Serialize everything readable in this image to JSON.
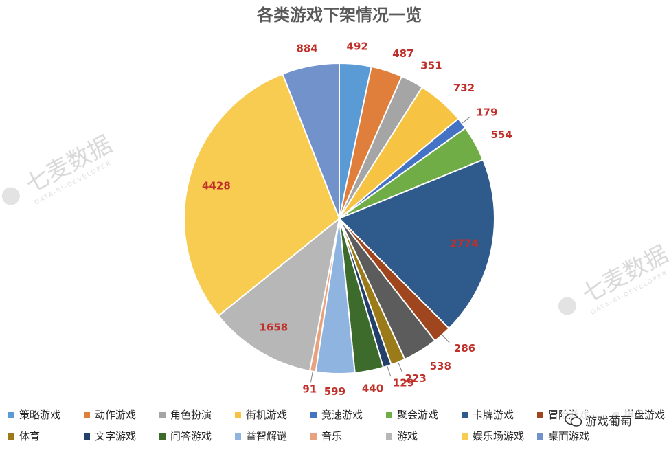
{
  "chart_data": {
    "type": "pie",
    "title": "各类游戏下架情况一览",
    "legend_position": "bottom",
    "categories": [
      "策略游戏",
      "动作游戏",
      "角色扮演",
      "街机游戏",
      "竞速游戏",
      "聚会游戏",
      "卡牌游戏",
      "冒险游戏",
      "棋盘游戏",
      "体育",
      "文字游戏",
      "问答游戏",
      "益智解谜",
      "音乐",
      "游戏",
      "娱乐场游戏",
      "桌面游戏"
    ],
    "values": [
      492,
      487,
      351,
      732,
      179,
      554,
      2774,
      286,
      538,
      223,
      129,
      440,
      599,
      91,
      1658,
      4428,
      884
    ],
    "colors": [
      "#5b9bd5",
      "#e07f3c",
      "#a5a5a5",
      "#f7c342",
      "#4472c4",
      "#70ad47",
      "#2f5a8c",
      "#a0461f",
      "#5c5c5c",
      "#9b7a1a",
      "#23406b",
      "#3d6b2c",
      "#8fb4e0",
      "#e8a37e",
      "#b7b7b7",
      "#f7cc50",
      "#7292cc"
    ]
  },
  "watermark": {
    "brand": "七麦数据",
    "sub": "DATA-RI-DEVELOPER"
  },
  "badge": {
    "text": "游戏葡萄",
    "icon": "wechat-icon"
  }
}
